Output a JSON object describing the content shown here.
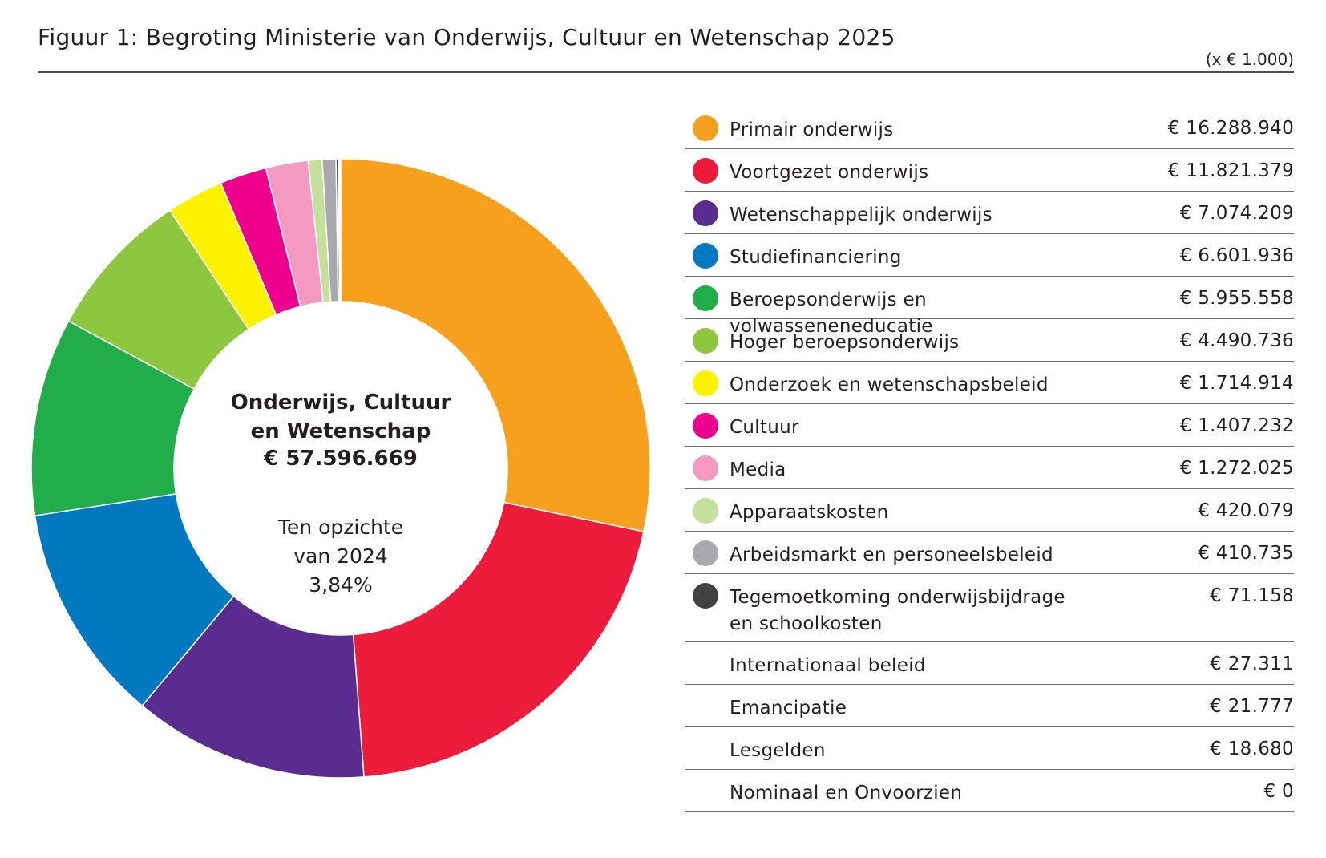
{
  "title": "Figuur 1: Begroting Ministerie van Onderwijs, Cultuur en Wetenschap 2025",
  "unit": "(x € 1.000)",
  "center": {
    "line1": "Onderwijs, Cultuur",
    "line2": "en Wetenschap",
    "total": "€ 57.596.669",
    "sub1": "Ten opzichte",
    "sub2": "van 2024",
    "sub3": "3,84%"
  },
  "chart_data": {
    "type": "pie",
    "unit": "(x € 1.000)",
    "total": 57596669,
    "change_vs_2024_percent": 3.84,
    "series": [
      {
        "name": "Primair onderwijs",
        "value": 16288940,
        "display": "€ 16.288.940",
        "color": "#f7a01d"
      },
      {
        "name": "Voortgezet onderwijs",
        "value": 11821379,
        "display": "€ 11.821.379",
        "color": "#ed1c3b"
      },
      {
        "name": "Wetenschappelijk onderwijs",
        "value": 7074209,
        "display": "€ 7.074.209",
        "color": "#5b2c8f"
      },
      {
        "name": "Studiefinanciering",
        "value": 6601936,
        "display": "€ 6.601.936",
        "color": "#0079c1"
      },
      {
        "name": "Beroepsonderwijs en volwasseneneducatie",
        "value": 5955558,
        "display": "€ 5.955.558",
        "color": "#21ad4a"
      },
      {
        "name": "Hoger beroepsonderwijs",
        "value": 4490736,
        "display": "€ 4.490.736",
        "color": "#8dc63f"
      },
      {
        "name": "Onderzoek en wetenschapsbeleid",
        "value": 1714914,
        "display": "€ 1.714.914",
        "color": "#fff200"
      },
      {
        "name": "Cultuur",
        "value": 1407232,
        "display": "€ 1.407.232",
        "color": "#ec008c"
      },
      {
        "name": "Media",
        "value": 1272025,
        "display": "€ 1.272.025",
        "color": "#f49ac1"
      },
      {
        "name": "Apparaatskosten",
        "value": 420079,
        "display": "€ 420.079",
        "color": "#c5e09b"
      },
      {
        "name": "Arbeidsmarkt en personeelsbeleid",
        "value": 410735,
        "display": "€ 410.735",
        "color": "#a7a9ac"
      },
      {
        "name": "Tegemoetkoming onderwijsbijdrage\nen schoolkosten",
        "value": 71158,
        "display": "€ 71.158",
        "color": "#414042"
      },
      {
        "name": "Internationaal beleid",
        "value": 27311,
        "display": "€ 27.311",
        "color": ""
      },
      {
        "name": "Emancipatie",
        "value": 21777,
        "display": "€ 21.777",
        "color": ""
      },
      {
        "name": "Lesgelden",
        "value": 18680,
        "display": "€ 18.680",
        "color": ""
      },
      {
        "name": "Nominaal en Onvoorzien",
        "value": 0,
        "display": "€ 0",
        "color": ""
      }
    ]
  }
}
